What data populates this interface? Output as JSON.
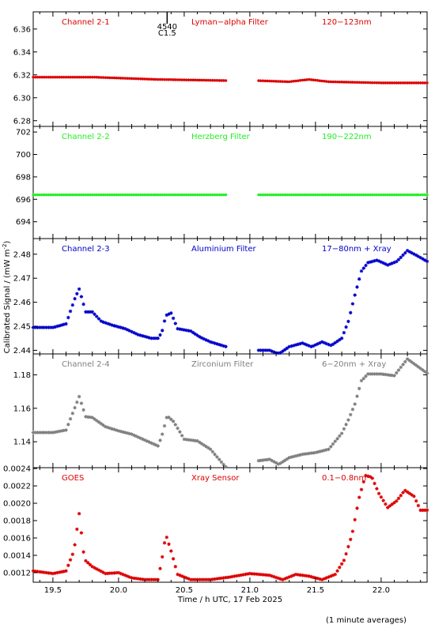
{
  "colors": {
    "red": "#dd0000",
    "green": "#22ee22",
    "blue": "#0000cc",
    "gray": "#808080",
    "frame": "#000000"
  },
  "xlabel": "Time / h UTC, 17 Feb 2025",
  "ylabel": "Calibrated Signal / (mW m",
  "ylabel_sup": "-2",
  "ylabel_end": ")",
  "footnote": "(1 minute averages)",
  "flare_marker": {
    "time": 20.37,
    "label_top": "4540",
    "label_bottom": "C1.5"
  },
  "x_axis": {
    "range": [
      19.35,
      22.35
    ],
    "ticks": [
      19.5,
      20.0,
      20.5,
      21.0,
      21.5,
      22.0
    ],
    "tick_labels": [
      "19.5",
      "20.0",
      "20.5",
      "21.0",
      "21.5",
      "22.0"
    ]
  },
  "chart_data": [
    {
      "type": "scatter",
      "panel": "Channel 2-1",
      "labels": [
        "Channel 2-1",
        "Lyman−alpha Filter",
        "120−123nm"
      ],
      "color": "red",
      "ylim": [
        6.275,
        6.375
      ],
      "yticks": [
        6.28,
        6.3,
        6.32,
        6.34,
        6.36
      ],
      "ytick_labels": [
        "6.28",
        "6.30",
        "6.32",
        "6.34",
        "6.36"
      ],
      "gap": [
        20.82,
        21.05
      ],
      "points": [
        [
          19.35,
          6.318
        ],
        [
          19.8,
          6.318
        ],
        [
          20.3,
          6.316
        ],
        [
          20.82,
          6.315
        ],
        [
          21.05,
          6.315
        ],
        [
          21.3,
          6.314
        ],
        [
          21.45,
          6.316
        ],
        [
          21.6,
          6.314
        ],
        [
          22.0,
          6.313
        ],
        [
          22.35,
          6.313
        ]
      ]
    },
    {
      "type": "scatter",
      "panel": "Channel 2-2",
      "labels": [
        "Channel 2-2",
        "Herzberg Filter",
        "190−222nm"
      ],
      "color": "green",
      "ylim": [
        692.5,
        702.5
      ],
      "yticks": [
        694,
        696,
        698,
        700,
        702
      ],
      "ytick_labels": [
        "694",
        "696",
        "698",
        "700",
        "702"
      ],
      "gap": [
        20.82,
        21.05
      ],
      "points": [
        [
          19.35,
          696.4
        ],
        [
          20.0,
          696.4
        ],
        [
          20.82,
          696.4
        ],
        [
          21.05,
          696.4
        ],
        [
          21.8,
          696.4
        ],
        [
          22.35,
          696.4
        ]
      ]
    },
    {
      "type": "scatter",
      "panel": "Channel 2-3",
      "labels": [
        "Channel 2-3",
        "Aluminium Filter",
        "17−80nm + Xray"
      ],
      "color": "blue",
      "ylim": [
        2.4385,
        2.4865
      ],
      "yticks": [
        2.44,
        2.45,
        2.46,
        2.47,
        2.48
      ],
      "ytick_labels": [
        "2.44",
        "2.45",
        "2.46",
        "2.47",
        "2.48"
      ],
      "gap": [
        20.82,
        21.05
      ],
      "points": [
        [
          19.35,
          2.4495
        ],
        [
          19.5,
          2.4495
        ],
        [
          19.6,
          2.451
        ],
        [
          19.67,
          2.462
        ],
        [
          19.7,
          2.4655
        ],
        [
          19.75,
          2.456
        ],
        [
          19.8,
          2.456
        ],
        [
          19.87,
          2.452
        ],
        [
          19.95,
          2.4505
        ],
        [
          20.05,
          2.449
        ],
        [
          20.15,
          2.4465
        ],
        [
          20.25,
          2.445
        ],
        [
          20.3,
          2.445
        ],
        [
          20.33,
          2.4475
        ],
        [
          20.36,
          2.4545
        ],
        [
          20.4,
          2.4555
        ],
        [
          20.45,
          2.449
        ],
        [
          20.55,
          2.448
        ],
        [
          20.62,
          2.4455
        ],
        [
          20.7,
          2.4435
        ],
        [
          20.82,
          2.4415
        ],
        [
          21.05,
          2.44
        ],
        [
          21.15,
          2.44
        ],
        [
          21.22,
          2.4385
        ],
        [
          21.3,
          2.4415
        ],
        [
          21.4,
          2.443
        ],
        [
          21.47,
          2.4415
        ],
        [
          21.55,
          2.4435
        ],
        [
          21.62,
          2.442
        ],
        [
          21.7,
          2.445
        ],
        [
          21.75,
          2.452
        ],
        [
          21.8,
          2.463
        ],
        [
          21.85,
          2.473
        ],
        [
          21.9,
          2.4765
        ],
        [
          21.97,
          2.4775
        ],
        [
          22.05,
          2.4755
        ],
        [
          22.12,
          2.477
        ],
        [
          22.2,
          2.4815
        ],
        [
          22.27,
          2.4795
        ],
        [
          22.35,
          2.477
        ]
      ]
    },
    {
      "type": "scatter",
      "panel": "Channel 2-4",
      "labels": [
        "Channel 2-4",
        "Zirconium Filter",
        "6−20nm + Xray"
      ],
      "color": "gray",
      "ylim": [
        1.1245,
        1.1925
      ],
      "yticks": [
        1.14,
        1.16,
        1.18
      ],
      "ytick_labels": [
        "1.14",
        "1.16",
        "1.18"
      ],
      "gap": [
        20.82,
        21.05
      ],
      "points": [
        [
          19.35,
          1.1455
        ],
        [
          19.5,
          1.1455
        ],
        [
          19.6,
          1.147
        ],
        [
          19.67,
          1.161
        ],
        [
          19.7,
          1.167
        ],
        [
          19.75,
          1.155
        ],
        [
          19.8,
          1.1545
        ],
        [
          19.9,
          1.149
        ],
        [
          20.0,
          1.1465
        ],
        [
          20.1,
          1.1445
        ],
        [
          20.2,
          1.141
        ],
        [
          20.3,
          1.1375
        ],
        [
          20.33,
          1.1435
        ],
        [
          20.37,
          1.1555
        ],
        [
          20.42,
          1.152
        ],
        [
          20.5,
          1.1415
        ],
        [
          20.6,
          1.1405
        ],
        [
          20.7,
          1.1355
        ],
        [
          20.82,
          1.1245
        ],
        [
          21.05,
          1.1285
        ],
        [
          21.15,
          1.1295
        ],
        [
          21.22,
          1.1265
        ],
        [
          21.3,
          1.1305
        ],
        [
          21.4,
          1.1325
        ],
        [
          21.5,
          1.1335
        ],
        [
          21.6,
          1.1355
        ],
        [
          21.7,
          1.145
        ],
        [
          21.75,
          1.153
        ],
        [
          21.8,
          1.1625
        ],
        [
          21.85,
          1.1765
        ],
        [
          21.9,
          1.1805
        ],
        [
          22.0,
          1.1805
        ],
        [
          22.1,
          1.1795
        ],
        [
          22.2,
          1.1895
        ],
        [
          22.27,
          1.1855
        ],
        [
          22.35,
          1.181
        ]
      ]
    },
    {
      "type": "scatter",
      "panel": "GOES",
      "labels": [
        "GOES",
        "Xray Sensor",
        "0.1−0.8nm"
      ],
      "color": "red",
      "ylim": [
        0.00109,
        0.00241
      ],
      "yticks": [
        0.0012,
        0.0014,
        0.0016,
        0.0018,
        0.002,
        0.0022,
        0.0024
      ],
      "ytick_labels": [
        "0.0012",
        "0.0014",
        "0.0016",
        "0.0018",
        "0.0020",
        "0.0022",
        "0.0024"
      ],
      "gap": null,
      "points": [
        [
          19.35,
          0.00122
        ],
        [
          19.5,
          0.00119
        ],
        [
          19.6,
          0.00122
        ],
        [
          19.66,
          0.00145
        ],
        [
          19.7,
          0.00188
        ],
        [
          19.74,
          0.00135
        ],
        [
          19.8,
          0.00127
        ],
        [
          19.9,
          0.00119
        ],
        [
          20.0,
          0.0012
        ],
        [
          20.1,
          0.00114
        ],
        [
          20.2,
          0.00112
        ],
        [
          20.3,
          0.00112
        ],
        [
          20.33,
          0.00135
        ],
        [
          20.36,
          0.00164
        ],
        [
          20.4,
          0.00145
        ],
        [
          20.45,
          0.00118
        ],
        [
          20.55,
          0.00112
        ],
        [
          20.7,
          0.00112
        ],
        [
          20.85,
          0.00115
        ],
        [
          21.0,
          0.00119
        ],
        [
          21.15,
          0.00117
        ],
        [
          21.25,
          0.00112
        ],
        [
          21.35,
          0.00118
        ],
        [
          21.45,
          0.00116
        ],
        [
          21.55,
          0.00112
        ],
        [
          21.65,
          0.00118
        ],
        [
          21.72,
          0.00135
        ],
        [
          21.78,
          0.00165
        ],
        [
          21.83,
          0.00205
        ],
        [
          21.88,
          0.00232
        ],
        [
          21.93,
          0.0023
        ],
        [
          21.98,
          0.00212
        ],
        [
          22.05,
          0.00195
        ],
        [
          22.12,
          0.00203
        ],
        [
          22.18,
          0.00215
        ],
        [
          22.25,
          0.00208
        ],
        [
          22.3,
          0.00192
        ],
        [
          22.35,
          0.00192
        ]
      ]
    }
  ]
}
